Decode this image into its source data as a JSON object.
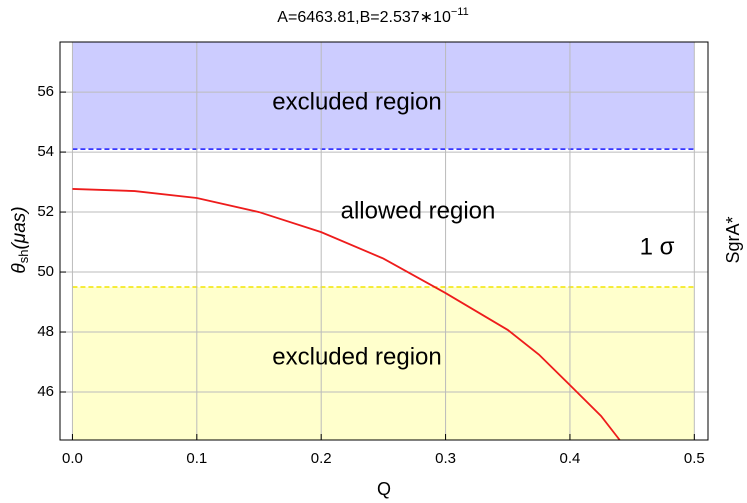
{
  "chart_data": {
    "type": "line",
    "title": {
      "base": "A=6463.81,B=2.537∗10",
      "exponent": "−11"
    },
    "x_label": "Q",
    "y_label": {
      "symbol": "θ",
      "subscript": "sh",
      "unit": "(μas)"
    },
    "right_label": "SgrA*",
    "xlim": [
      -0.01,
      0.511
    ],
    "ylim": [
      44.4,
      57.67
    ],
    "xticks": [
      {
        "value": 0,
        "label": "0.0"
      },
      0.1,
      0.2,
      0.3,
      0.4,
      0.5
    ],
    "yticks": [
      46,
      48,
      50,
      52,
      54,
      56
    ],
    "grid": true,
    "series": [
      {
        "color": "#ee1c1c",
        "x": [
          0,
          0.05,
          0.1,
          0.15,
          0.2,
          0.25,
          0.3,
          0.35,
          0.375,
          0.4,
          0.425,
          0.44
        ],
        "values": [
          52.77,
          52.7,
          52.47,
          52.0,
          51.33,
          50.45,
          49.3,
          48.07,
          47.25,
          46.23,
          45.2,
          44.4
        ]
      }
    ],
    "bands": [
      {
        "label": "excluded region",
        "threshold": 54.1,
        "side": "above",
        "x_range": [
          0,
          0.5
        ],
        "fill": "#ccccff",
        "line_color": "#1a1aff"
      },
      {
        "label": "excluded region",
        "threshold": 49.5,
        "side": "below",
        "x_range": [
          0,
          0.5
        ],
        "fill": "#ffffcc",
        "line_color": "#f2e600"
      }
    ],
    "annotations": [
      "allowed region",
      "1 σ"
    ]
  }
}
